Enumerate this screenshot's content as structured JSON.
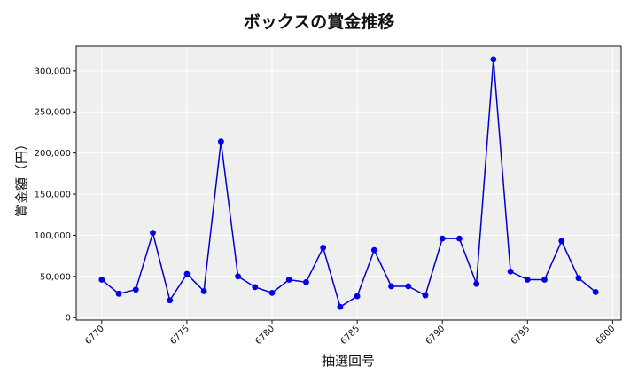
{
  "chart_data": {
    "type": "line",
    "title": "ボックスの賞金推移",
    "xlabel": "抽選回号",
    "ylabel": "賞金額（円）",
    "x": [
      6770,
      6771,
      6772,
      6773,
      6774,
      6775,
      6776,
      6777,
      6778,
      6779,
      6780,
      6781,
      6782,
      6783,
      6784,
      6785,
      6786,
      6787,
      6788,
      6789,
      6790,
      6791,
      6792,
      6793,
      6794,
      6795,
      6796,
      6797,
      6798,
      6799
    ],
    "series": [
      {
        "values": [
          46000,
          29000,
          34000,
          103000,
          21000,
          53000,
          32000,
          214000,
          50000,
          37000,
          30000,
          46000,
          43000,
          85000,
          13000,
          26000,
          82000,
          38000,
          38000,
          27000,
          96000,
          96000,
          41000,
          314000,
          56000,
          46000,
          46000,
          93000,
          48000,
          31000
        ]
      }
    ],
    "xlim": [
      6768.5,
      6800.5
    ],
    "ylim": [
      -3000,
      330000
    ],
    "x_ticks": [
      6770,
      6775,
      6780,
      6785,
      6790,
      6795,
      6800
    ],
    "x_tick_labels": [
      "6770",
      "6775",
      "6780",
      "6785",
      "6790",
      "6795",
      "6800"
    ],
    "y_ticks": [
      0,
      50000,
      100000,
      150000,
      200000,
      250000,
      300000
    ],
    "y_tick_labels": [
      "0",
      "50,000",
      "100,000",
      "150,000",
      "200,000",
      "250,000",
      "300,000"
    ],
    "grid": true,
    "colors": {
      "line": "#0000cd",
      "marker": "#0000ee",
      "plot_bg": "#efefef",
      "grid": "#ffffff"
    }
  }
}
